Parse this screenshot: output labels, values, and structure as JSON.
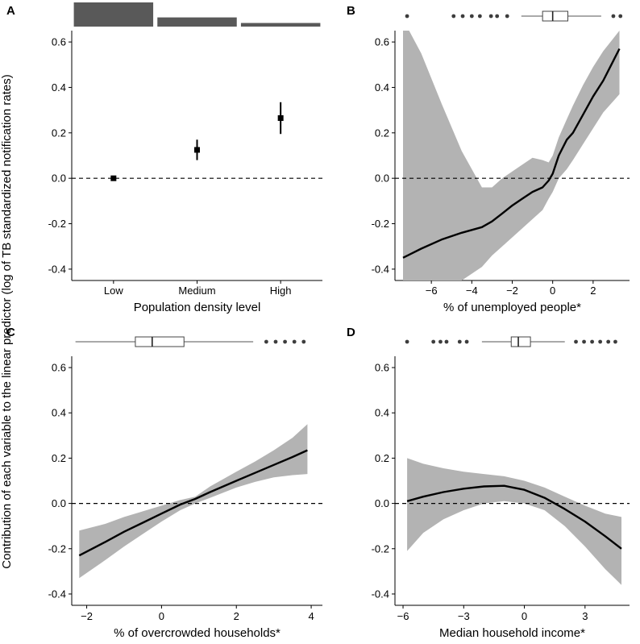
{
  "y_axis_label": "Contribution of each variable to the linear predictor (log of TB standardized notification rates)",
  "colors": {
    "ribbon": "#b3b3b3",
    "line": "#000000",
    "bar": "#595959",
    "point": "#3d3d3d"
  },
  "chart_data": [
    {
      "panel": "A",
      "type": "point-range",
      "xlabel": "Population density level",
      "categories": [
        "Low",
        "Medium",
        "High"
      ],
      "estimates": [
        0.0,
        0.125,
        0.265
      ],
      "lower": [
        0.0,
        0.08,
        0.195
      ],
      "upper": [
        0.0,
        0.17,
        0.335
      ],
      "yticks": [
        -0.4,
        -0.2,
        0.0,
        0.2,
        0.4,
        0.6
      ],
      "ytick_labels": [
        "-0.4",
        "-0.2",
        "0.0",
        "0.2",
        "0.4",
        "0.6"
      ],
      "ylim": [
        -0.45,
        0.65
      ],
      "reference_line": 0.0,
      "marginal_bar_relative_heights": [
        1.0,
        0.38,
        0.15
      ]
    },
    {
      "panel": "B",
      "type": "line-ribbon",
      "xlabel": "% of unemployed people*",
      "xlim": [
        -7.8,
        3.8
      ],
      "xticks": [
        -6,
        -4,
        -2,
        0,
        2
      ],
      "xtick_labels": [
        "−6",
        "−4",
        "−2",
        "0",
        "2"
      ],
      "yticks": [
        -0.4,
        -0.2,
        0.0,
        0.2,
        0.4,
        0.6
      ],
      "ytick_labels": [
        "-0.4",
        "-0.2",
        "0.0",
        "0.2",
        "0.4",
        "0.6"
      ],
      "ylim": [
        -0.45,
        0.65
      ],
      "reference_line": 0.0,
      "x": [
        -7.4,
        -6.5,
        -5.5,
        -4.5,
        -3.5,
        -3.0,
        -2.5,
        -2.0,
        -1.5,
        -1.0,
        -0.5,
        -0.2,
        0.0,
        0.3,
        0.7,
        1.0,
        1.5,
        2.0,
        2.5,
        3.3
      ],
      "y": [
        -0.35,
        -0.31,
        -0.27,
        -0.24,
        -0.215,
        -0.19,
        -0.155,
        -0.12,
        -0.09,
        -0.06,
        -0.04,
        -0.01,
        0.02,
        0.1,
        0.17,
        0.2,
        0.28,
        0.36,
        0.43,
        0.57
      ],
      "lower": [
        -0.7,
        -0.6,
        -0.5,
        -0.45,
        -0.39,
        -0.34,
        -0.3,
        -0.26,
        -0.22,
        -0.18,
        -0.14,
        -0.09,
        -0.06,
        0.0,
        0.04,
        0.08,
        0.15,
        0.22,
        0.29,
        0.37
      ],
      "upper": [
        0.7,
        0.55,
        0.33,
        0.12,
        -0.04,
        -0.04,
        0.0,
        0.03,
        0.06,
        0.09,
        0.08,
        0.07,
        0.1,
        0.18,
        0.26,
        0.32,
        0.41,
        0.49,
        0.56,
        0.65
      ],
      "outliers": [
        -7.2,
        -4.9,
        -4.45,
        -4.0,
        -3.6,
        -3.05,
        -2.75,
        -2.25,
        3.0,
        3.35
      ],
      "boxplot": {
        "min": -1.55,
        "q1": -0.5,
        "median": 0.0,
        "q3": 0.75,
        "max": 2.4
      }
    },
    {
      "panel": "C",
      "type": "line-ribbon",
      "xlabel": "% of overcrowded households*",
      "xlim": [
        -2.4,
        4.3
      ],
      "xticks": [
        -2,
        0,
        2,
        4
      ],
      "xtick_labels": [
        "−2",
        "0",
        "2",
        "4"
      ],
      "yticks": [
        -0.4,
        -0.2,
        0.0,
        0.2,
        0.4,
        0.6
      ],
      "ytick_labels": [
        "-0.4",
        "-0.2",
        "0.0",
        "0.2",
        "0.4",
        "0.6"
      ],
      "ylim": [
        -0.45,
        0.65
      ],
      "reference_line": 0.0,
      "x": [
        -2.2,
        -1.5,
        -1.0,
        -0.5,
        0.0,
        0.5,
        0.9,
        1.3,
        2.0,
        2.5,
        3.0,
        3.5,
        3.9
      ],
      "y": [
        -0.23,
        -0.17,
        -0.125,
        -0.085,
        -0.045,
        -0.005,
        0.02,
        0.05,
        0.1,
        0.135,
        0.17,
        0.205,
        0.235
      ],
      "lower": [
        -0.33,
        -0.25,
        -0.19,
        -0.135,
        -0.08,
        -0.03,
        0.0,
        0.025,
        0.07,
        0.095,
        0.115,
        0.125,
        0.13
      ],
      "upper": [
        -0.12,
        -0.09,
        -0.06,
        -0.035,
        -0.01,
        0.015,
        0.03,
        0.075,
        0.14,
        0.185,
        0.235,
        0.29,
        0.35
      ],
      "outliers": [
        2.8,
        3.05,
        3.3,
        3.55,
        3.8
      ],
      "boxplot": {
        "min": -2.3,
        "q1": -0.7,
        "median": -0.25,
        "q3": 0.6,
        "max": 2.45
      }
    },
    {
      "panel": "D",
      "type": "line-ribbon",
      "xlabel": "Median household income*",
      "xlim": [
        -6.4,
        5.2
      ],
      "xticks": [
        -6,
        -3,
        0,
        3
      ],
      "xtick_labels": [
        "−6",
        "−3",
        "0",
        "3"
      ],
      "yticks": [
        -0.4,
        -0.2,
        0.0,
        0.2,
        0.4,
        0.6
      ],
      "ytick_labels": [
        "-0.4",
        "-0.2",
        "0.0",
        "0.2",
        "0.4",
        "0.6"
      ],
      "ylim": [
        -0.45,
        0.65
      ],
      "reference_line": 0.0,
      "x": [
        -5.8,
        -5.0,
        -4.0,
        -3.0,
        -2.0,
        -1.0,
        0.0,
        1.0,
        2.0,
        3.0,
        4.0,
        4.8
      ],
      "y": [
        0.01,
        0.03,
        0.05,
        0.065,
        0.075,
        0.078,
        0.06,
        0.025,
        -0.025,
        -0.08,
        -0.145,
        -0.2
      ],
      "lower": [
        -0.21,
        -0.13,
        -0.07,
        -0.03,
        0.0,
        0.01,
        0.0,
        -0.03,
        -0.1,
        -0.19,
        -0.29,
        -0.36
      ],
      "upper": [
        0.2,
        0.175,
        0.155,
        0.14,
        0.13,
        0.12,
        0.1,
        0.07,
        0.03,
        -0.01,
        -0.045,
        -0.06
      ],
      "outliers": [
        -5.8,
        -4.5,
        -4.15,
        -3.85,
        -3.2,
        -2.85,
        2.55,
        2.95,
        3.35,
        3.75,
        4.15,
        4.5
      ],
      "boxplot": {
        "min": -2.1,
        "q1": -0.65,
        "median": -0.3,
        "q3": 0.3,
        "max": 2.0
      }
    }
  ]
}
